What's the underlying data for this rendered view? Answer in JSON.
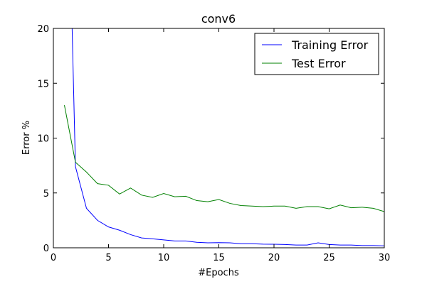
{
  "chart_data": {
    "type": "line",
    "title": "conv6",
    "xlabel": "#Epochs",
    "ylabel": "Error %",
    "xlim": [
      0,
      30
    ],
    "ylim": [
      0,
      20
    ],
    "xticks": [
      0,
      5,
      10,
      15,
      20,
      25,
      30
    ],
    "yticks": [
      0,
      5,
      10,
      15,
      20
    ],
    "grid": false,
    "legend_position": "top-right",
    "series": [
      {
        "name": "Training Error",
        "color": "#0000ff",
        "x": [
          1.7,
          2,
          3,
          4,
          5,
          6,
          7,
          8,
          9,
          10,
          11,
          12,
          13,
          14,
          15,
          16,
          17,
          18,
          19,
          20,
          21,
          22,
          23,
          24,
          25,
          26,
          27,
          28,
          29,
          30
        ],
        "y": [
          20,
          7.4,
          3.6,
          2.5,
          1.9,
          1.6,
          1.2,
          0.9,
          0.82,
          0.72,
          0.62,
          0.62,
          0.5,
          0.45,
          0.47,
          0.45,
          0.37,
          0.37,
          0.33,
          0.32,
          0.3,
          0.25,
          0.25,
          0.45,
          0.3,
          0.25,
          0.25,
          0.2,
          0.2,
          0.18
        ]
      },
      {
        "name": "Test Error",
        "color": "#008000",
        "x": [
          1,
          2,
          3,
          4,
          5,
          6,
          7,
          8,
          9,
          10,
          11,
          12,
          13,
          14,
          15,
          16,
          17,
          18,
          19,
          20,
          21,
          22,
          23,
          24,
          25,
          26,
          27,
          28,
          29,
          30
        ],
        "y": [
          13.0,
          7.8,
          6.9,
          5.85,
          5.7,
          4.9,
          5.45,
          4.8,
          4.6,
          4.95,
          4.65,
          4.7,
          4.3,
          4.2,
          4.4,
          4.05,
          3.85,
          3.8,
          3.75,
          3.8,
          3.8,
          3.6,
          3.75,
          3.75,
          3.55,
          3.9,
          3.65,
          3.7,
          3.6,
          3.3
        ]
      }
    ]
  }
}
